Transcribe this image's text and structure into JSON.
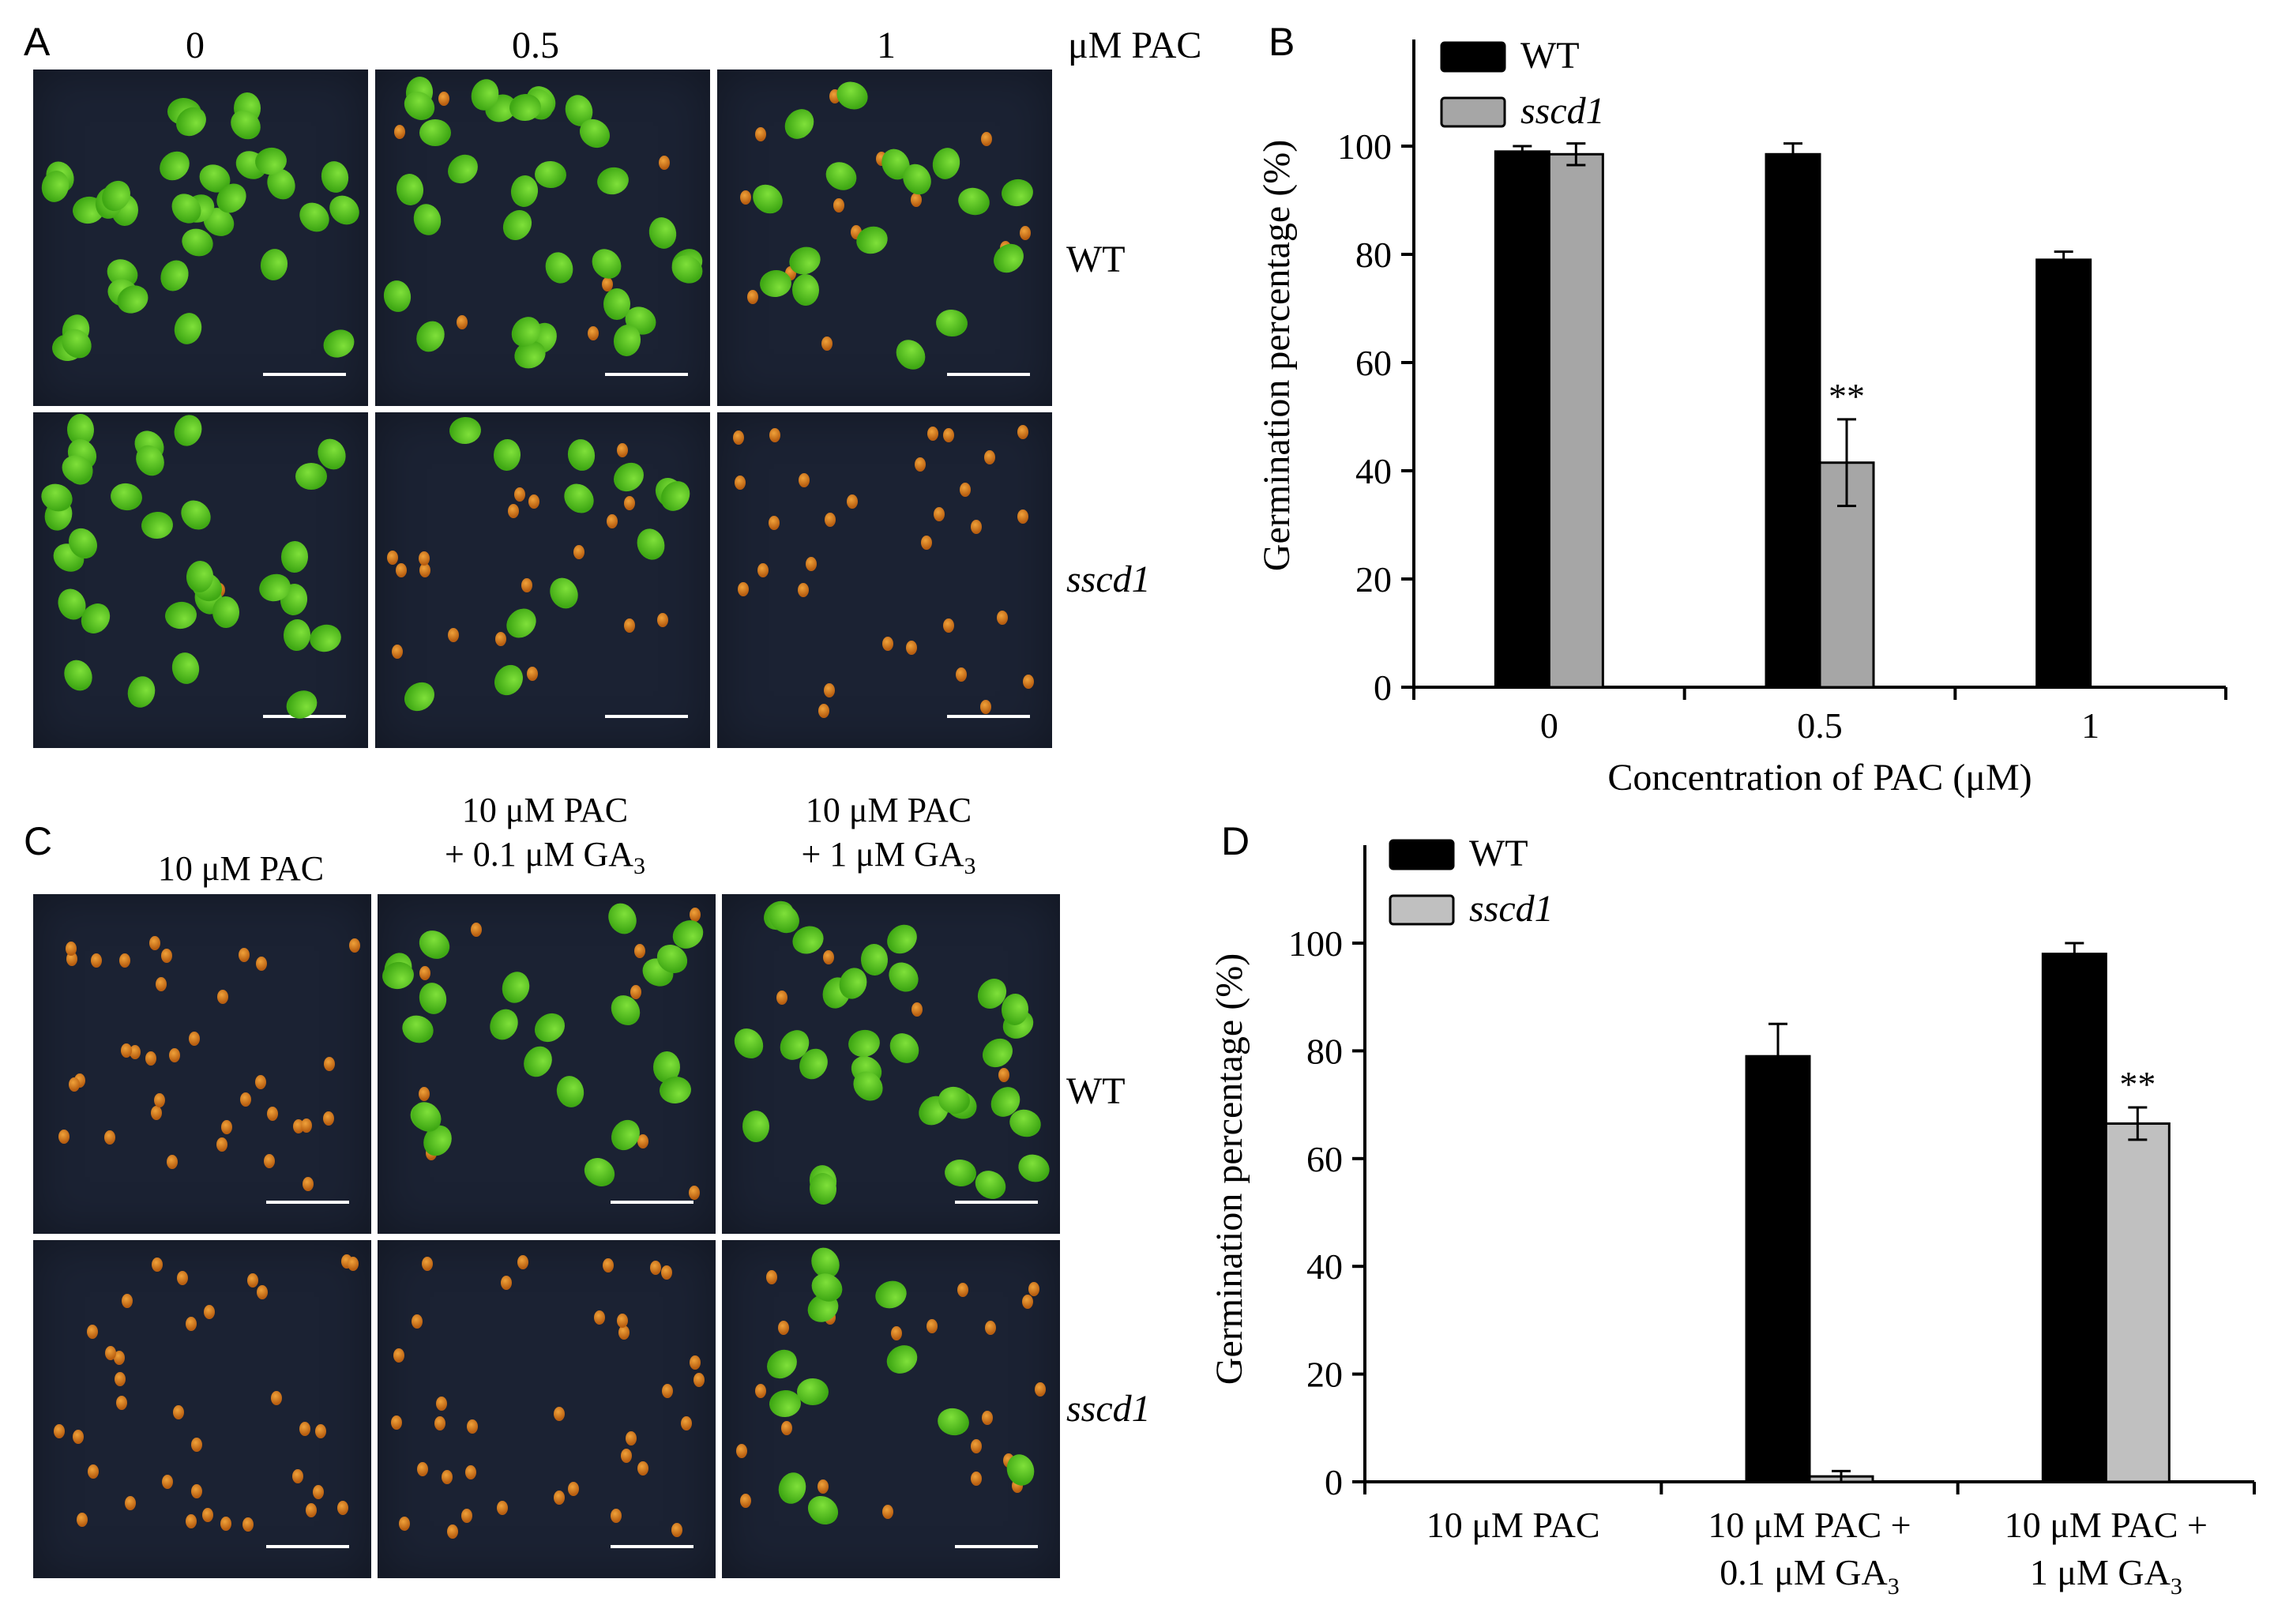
{
  "panels": {
    "A": {
      "letter": "A",
      "col_headers": [
        "0",
        "0.5",
        "1"
      ],
      "unit_label": "μM PAC",
      "row_labels": [
        "WT",
        "sscd1"
      ],
      "photos": [
        {
          "row": "WT",
          "col": "0",
          "seedling_state": "germinated"
        },
        {
          "row": "WT",
          "col": "0.5",
          "seedling_state": "germinated"
        },
        {
          "row": "WT",
          "col": "1",
          "seedling_state": "mostly-germinated"
        },
        {
          "row": "sscd1",
          "col": "0",
          "seedling_state": "germinated"
        },
        {
          "row": "sscd1",
          "col": "0.5",
          "seedling_state": "partly-germinated"
        },
        {
          "row": "sscd1",
          "col": "1",
          "seedling_state": "seeds-only"
        }
      ]
    },
    "C": {
      "letter": "C",
      "col_headers": [
        {
          "line1": "10 μM PAC",
          "line2": ""
        },
        {
          "line1": "10 μM PAC",
          "line2": "+ 0.1 μM GA",
          "sub": "3"
        },
        {
          "line1": "10 μM PAC",
          "line2": "+ 1 μM GA",
          "sub": "3"
        }
      ],
      "row_labels": [
        "WT",
        "sscd1"
      ],
      "photos": [
        {
          "row": "WT",
          "col": "10 μM PAC",
          "seedling_state": "seeds-only"
        },
        {
          "row": "WT",
          "col": "+0.1 GA3",
          "seedling_state": "mostly-germinated"
        },
        {
          "row": "WT",
          "col": "+1 GA3",
          "seedling_state": "germinated"
        },
        {
          "row": "sscd1",
          "col": "10 μM PAC",
          "seedling_state": "seeds-only"
        },
        {
          "row": "sscd1",
          "col": "+0.1 GA3",
          "seedling_state": "seeds-only"
        },
        {
          "row": "sscd1",
          "col": "+1 GA3",
          "seedling_state": "partly-germinated"
        }
      ]
    }
  },
  "chart_data": [
    {
      "panel": "B",
      "type": "bar",
      "ylabel": "Germination percentage (%)",
      "xlabel": "Concentration of PAC (μM)",
      "categories": [
        "0",
        "0.5",
        "1"
      ],
      "ylim": [
        0,
        100
      ],
      "yticks": [
        "0",
        "20",
        "40",
        "60",
        "80",
        "100"
      ],
      "legend_position": "top-left",
      "series": [
        {
          "name": "WT",
          "color": "#000000",
          "values": [
            99,
            98.5,
            79
          ],
          "errors": [
            1,
            2,
            1.5
          ]
        },
        {
          "name": "sscd1",
          "color": "#a6a6a6",
          "values": [
            98.5,
            41.5,
            null
          ],
          "errors": [
            2,
            8,
            null
          ]
        }
      ],
      "annotations": [
        {
          "category": "0.5",
          "series": "sscd1",
          "text": "**"
        }
      ]
    },
    {
      "panel": "D",
      "type": "bar",
      "ylabel": "Germination percentage (%)",
      "categories": [
        {
          "line1": "10 μM PAC",
          "line2": ""
        },
        {
          "line1": "10 μM PAC +",
          "line2": "0.1 μM GA",
          "sub": "3"
        },
        {
          "line1": "10 μM PAC +",
          "line2": "1 μM GA",
          "sub": "3"
        }
      ],
      "ylim": [
        0,
        100
      ],
      "yticks": [
        "0",
        "20",
        "40",
        "60",
        "80",
        "100"
      ],
      "legend_position": "top-left",
      "series": [
        {
          "name": "WT",
          "color": "#000000",
          "values": [
            0,
            79,
            98
          ],
          "errors": [
            0,
            6,
            2
          ]
        },
        {
          "name": "sscd1",
          "color": "#c0c0c0",
          "values": [
            0,
            1,
            66.5
          ],
          "errors": [
            0,
            1,
            3
          ]
        }
      ],
      "annotations": [
        {
          "category": 2,
          "series": "sscd1",
          "text": "**"
        }
      ]
    }
  ]
}
